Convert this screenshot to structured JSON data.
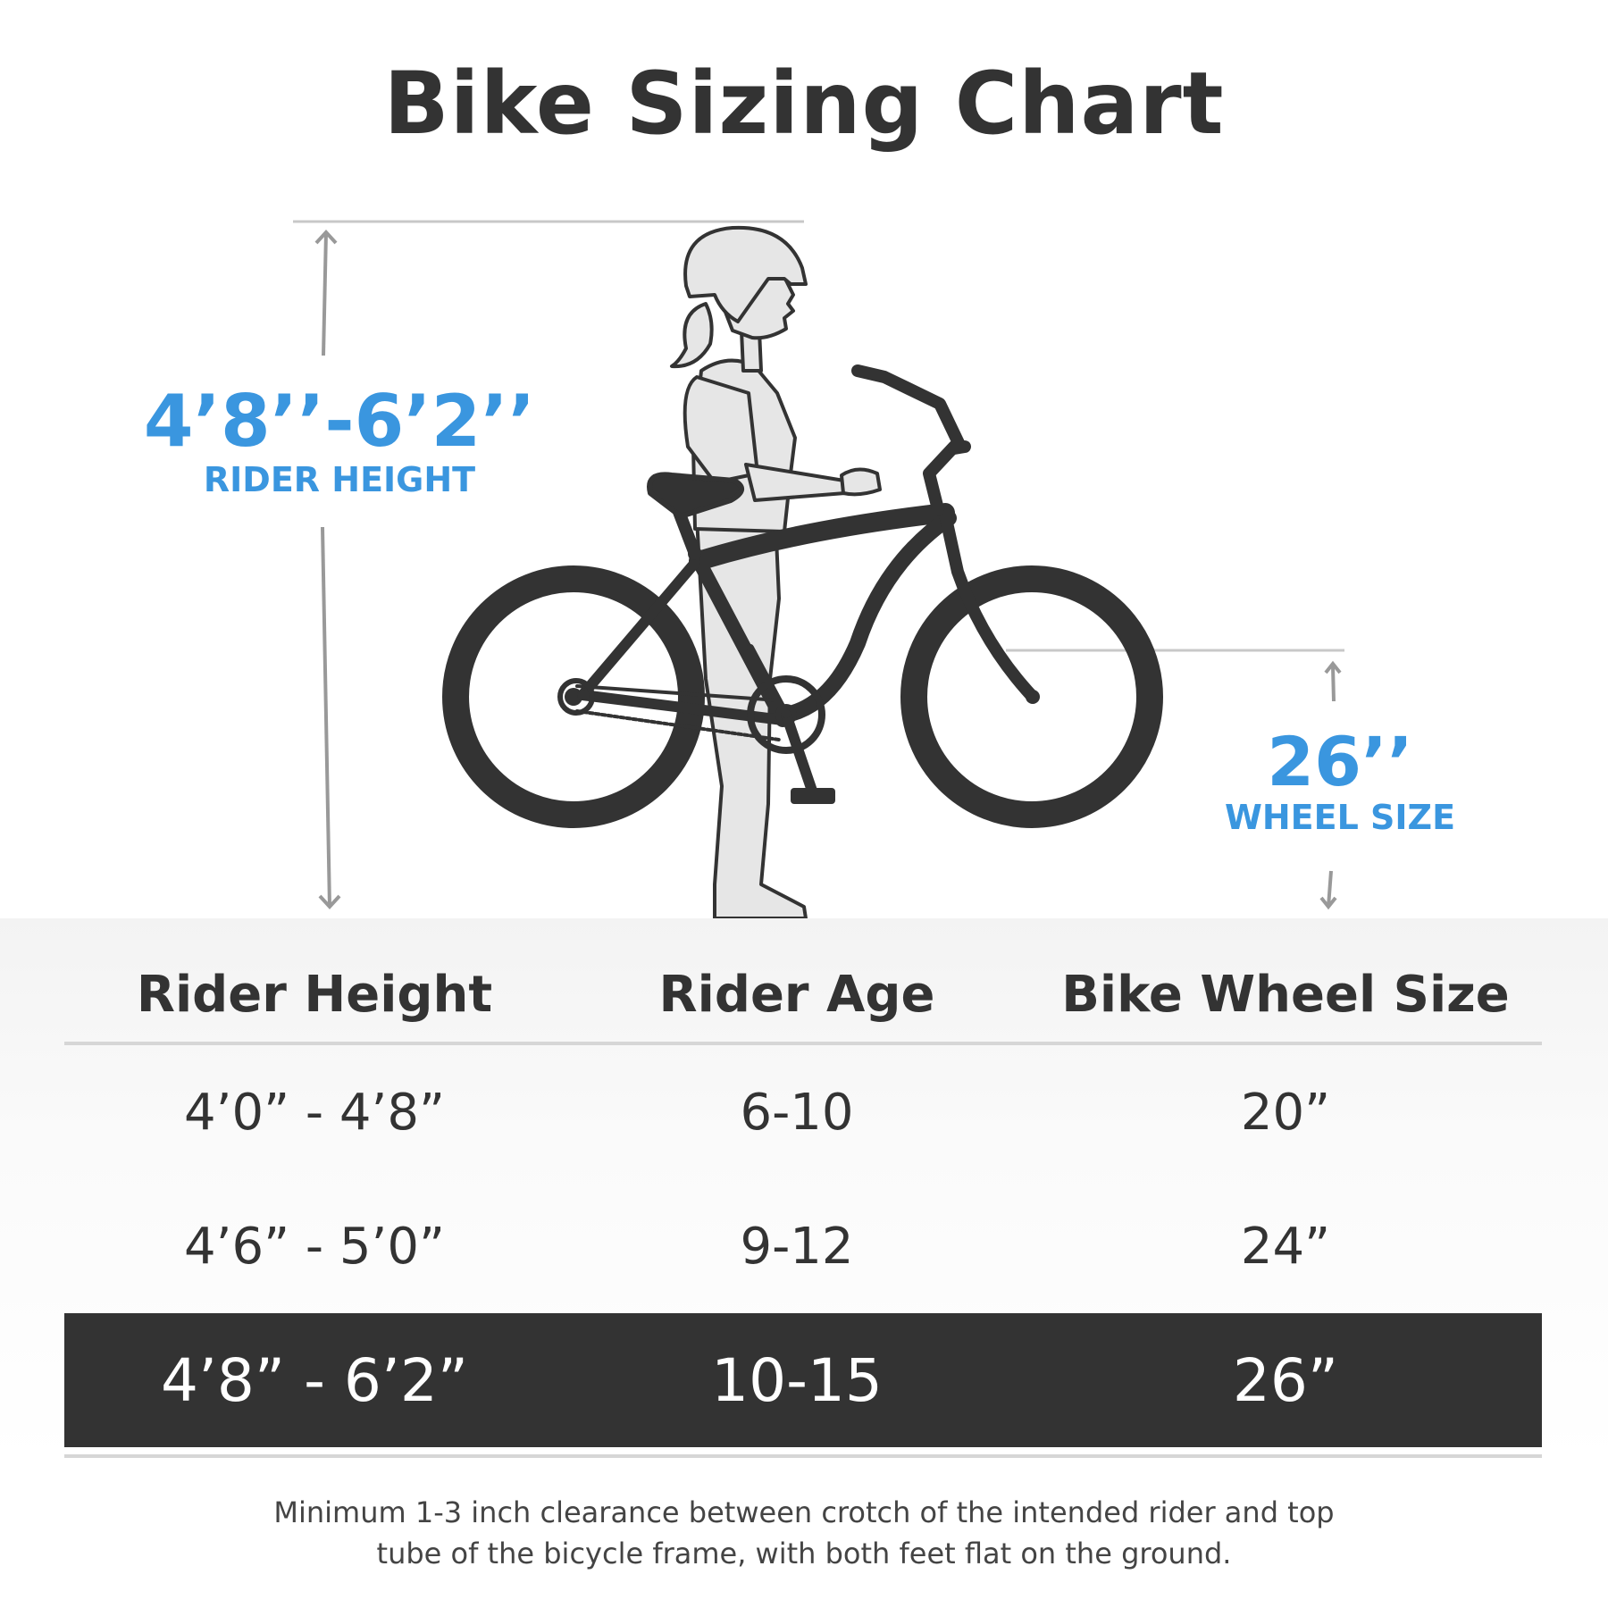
{
  "title": "Bike Sizing Chart",
  "rider_height_label": {
    "value": "4’8’’-6’2’’",
    "caption": "RIDER HEIGHT"
  },
  "wheel_size_label": {
    "value": "26’’",
    "caption": "WHEEL SIZE"
  },
  "table": {
    "headers": [
      "Rider Height",
      "Rider Age",
      "Bike Wheel Size"
    ],
    "rows": [
      [
        "4’0”  - 4’8”",
        "6-10",
        "20”"
      ],
      [
        "4’6”  - 5’0”",
        "9-12",
        "24”"
      ],
      [
        "4’8”  - 6’2”",
        "10-15",
        "26”"
      ]
    ],
    "highlighted_row": 2
  },
  "footnote": {
    "line1": "Minimum 1-3 inch clearance between crotch of the intended rider and top",
    "line2": "tube of the bicycle frame, with both feet flat on the ground."
  },
  "colors": {
    "accent_blue": "#3a96df",
    "dark": "#333333",
    "divider": "#d6d6d6",
    "figure_fill": "#e6e6e6"
  },
  "icons": {
    "figure": "rider-with-helmet-illustration",
    "bike": "cruiser-bicycle-illustration"
  }
}
